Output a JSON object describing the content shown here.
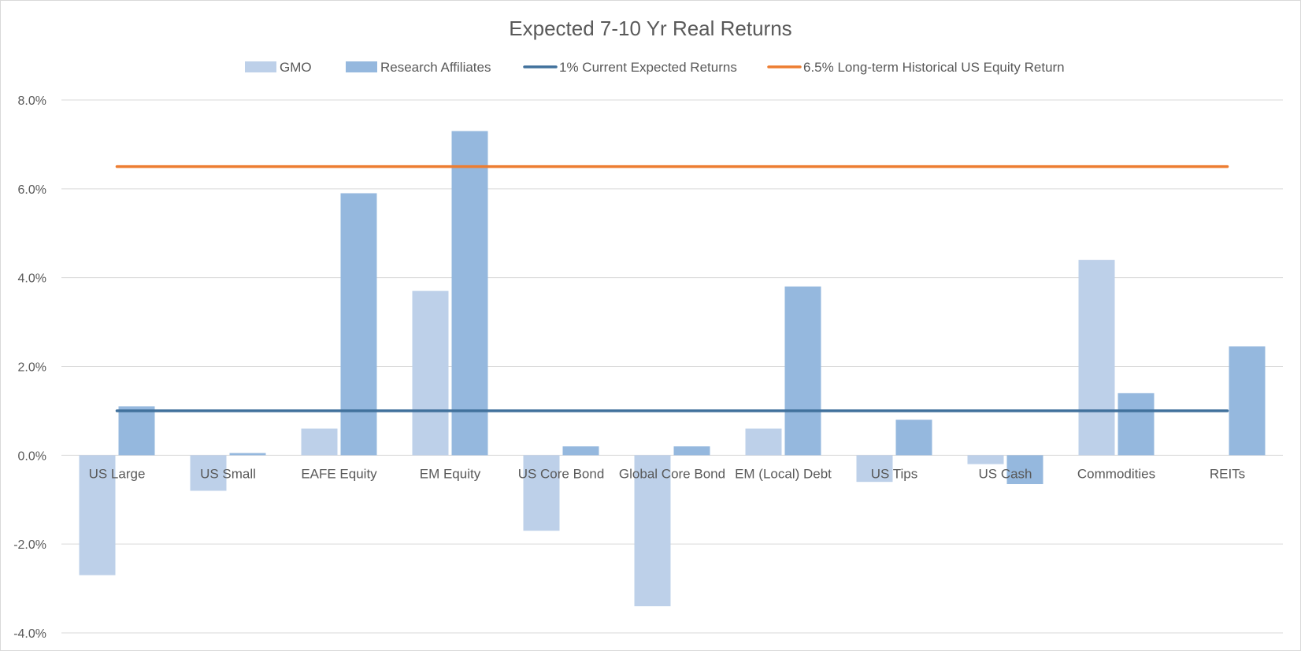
{
  "chart_data": {
    "type": "bar",
    "title": "Expected 7-10 Yr Real Returns",
    "categories": [
      "US Large",
      "US Small",
      "EAFE Equity",
      "EM Equity",
      "US Core Bond",
      "Global Core Bond",
      "EM (Local) Debt",
      "US Tips",
      "US Cash",
      "Commodities",
      "REITs"
    ],
    "series": [
      {
        "name": "GMO",
        "kind": "bar",
        "color": "#bdd0e9",
        "values": [
          -2.7,
          -0.8,
          0.6,
          3.7,
          -1.7,
          -3.4,
          0.6,
          -0.6,
          -0.2,
          4.4,
          null
        ]
      },
      {
        "name": "Research Affiliates",
        "kind": "bar",
        "color": "#95b8de",
        "values": [
          1.1,
          0.05,
          5.9,
          7.3,
          0.2,
          0.2,
          3.8,
          0.8,
          -0.65,
          1.4,
          2.45
        ]
      },
      {
        "name": "1% Current Expected Returns",
        "kind": "line",
        "color": "#41719c",
        "value": 1.0
      },
      {
        "name": "6.5% Long-term Historical US Equity Return",
        "kind": "line",
        "color": "#ed7d31",
        "value": 6.5
      }
    ],
    "ylim": [
      -4,
      8
    ],
    "ytick_labels": [
      "8.0%",
      "6.0%",
      "4.0%",
      "2.0%",
      "0.0%",
      "-2.0%",
      "-4.0%"
    ],
    "xlabel": "",
    "ylabel": "",
    "grid": true,
    "legend_position": "top-center"
  }
}
